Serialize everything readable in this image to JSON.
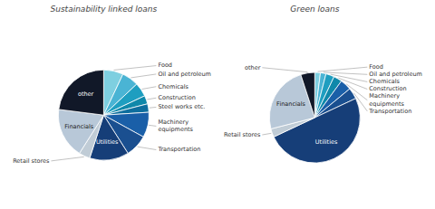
{
  "chart_data": [
    {
      "type": "pie",
      "title": "Sustainability linked loans",
      "categories": [
        "Food",
        "Oil and petroleum",
        "Chemicals",
        "Construction",
        "Steel works etc.",
        "Machinery\nequipments",
        "Transportation",
        "Utilities",
        "Retail stores",
        "Financials",
        "other"
      ],
      "values": [
        7,
        6,
        5,
        3,
        3,
        9,
        8,
        14,
        4,
        18,
        23
      ],
      "colors": [
        "#7ecfe0",
        "#4ab4d4",
        "#1e9ec0",
        "#0f88aa",
        "#0e6e9e",
        "#1a5fa8",
        "#1a4f90",
        "#163e78",
        "#c0ccd6",
        "#b8c8d8",
        "#111828"
      ]
    },
    {
      "type": "pie",
      "title": "Green loans",
      "categories": [
        "Food",
        "Oil and petroleum",
        "Chemicals",
        "Construction",
        "Machinery\nequipments",
        "Transportation",
        "Utilities",
        "Retail stores",
        "Financials",
        "other"
      ],
      "values": [
        2,
        2,
        3,
        3,
        4,
        4,
        50,
        3,
        24,
        5
      ],
      "colors": [
        "#7ecfe0",
        "#4ab4d4",
        "#1e9ec0",
        "#0f88aa",
        "#1a5fa8",
        "#1a4f90",
        "#163e78",
        "#c0ccd6",
        "#b8c8d8",
        "#111828"
      ]
    }
  ]
}
